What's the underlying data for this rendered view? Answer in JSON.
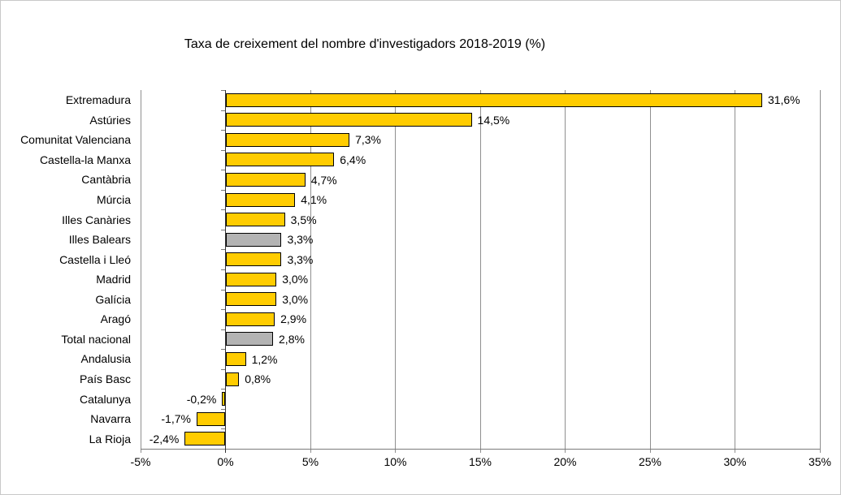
{
  "chart_data": {
    "type": "bar",
    "orientation": "horizontal",
    "title": "Taxa de creixement del nombre d'investigadors 2018-2019 (%)",
    "categories": [
      "Extremadura",
      "Astúries",
      "Comunitat Valenciana",
      "Castella-la Manxa",
      "Cantàbria",
      "Múrcia",
      "Illes Canàries",
      "Illes Balears",
      "Castella i Lleó",
      "Madrid",
      "Galícia",
      "Aragó",
      "Total nacional",
      "Andalusia",
      "País Basc",
      "Catalunya",
      "Navarra",
      "La Rioja"
    ],
    "values": [
      31.6,
      14.5,
      7.3,
      6.4,
      4.7,
      4.1,
      3.5,
      3.3,
      3.3,
      3.0,
      3.0,
      2.9,
      2.8,
      1.2,
      0.8,
      -0.2,
      -1.7,
      -2.4
    ],
    "value_labels": [
      "31,6%",
      "14,5%",
      "7,3%",
      "6,4%",
      "4,7%",
      "4,1%",
      "3,5%",
      "3,3%",
      "3,3%",
      "3,0%",
      "3,0%",
      "2,9%",
      "2,8%",
      "1,2%",
      "0,8%",
      "-0,2%",
      "-1,7%",
      "-2,4%"
    ],
    "gray_bar_indices": [
      7,
      12
    ],
    "x_ticks": [
      "-5%",
      "0%",
      "5%",
      "10%",
      "15%",
      "20%",
      "25%",
      "30%",
      "35%"
    ],
    "x_tick_values": [
      -5,
      0,
      5,
      10,
      15,
      20,
      25,
      30,
      35
    ],
    "xlim": [
      -5,
      35
    ],
    "grid": "vertical",
    "legend": "none",
    "colors": {
      "bar": "#FFCC00",
      "bar_gray": "#B3B3B3",
      "bar_border": "#000000",
      "gridline": "#8f8f8f",
      "axis": "#7a7a7a",
      "zero_axis": "#333333",
      "text": "#000000",
      "frame_border": "#c8c8c8",
      "background": "#ffffff"
    }
  }
}
